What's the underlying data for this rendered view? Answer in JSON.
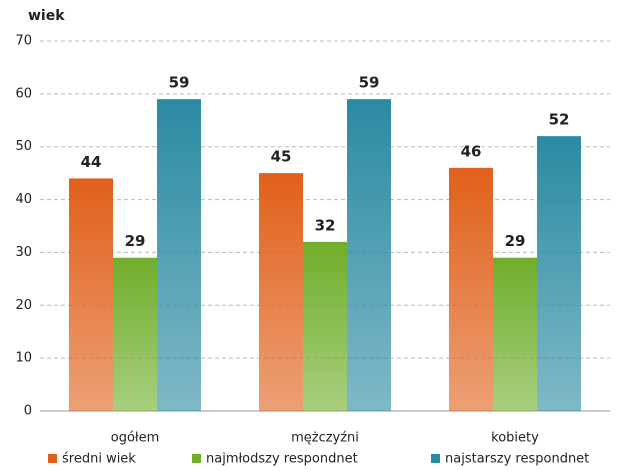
{
  "chart_data": {
    "type": "bar",
    "y_label": "wiek",
    "categories": [
      "ogółem",
      "mężczyźni",
      "kobiety"
    ],
    "series": [
      {
        "name": "średni wiek",
        "color": "#e0601a",
        "values": [
          44,
          45,
          46
        ]
      },
      {
        "name": "najmłodszy respondnet",
        "color": "#6fae2a",
        "values": [
          29,
          32,
          29
        ]
      },
      {
        "name": "najstarszy respondnet",
        "color": "#2a8aa2",
        "values": [
          59,
          59,
          52
        ]
      }
    ],
    "ylim": [
      0,
      70
    ],
    "yticks": [
      0,
      10,
      20,
      30,
      40,
      50,
      60,
      70
    ],
    "grid": true,
    "legend": "bottom"
  }
}
